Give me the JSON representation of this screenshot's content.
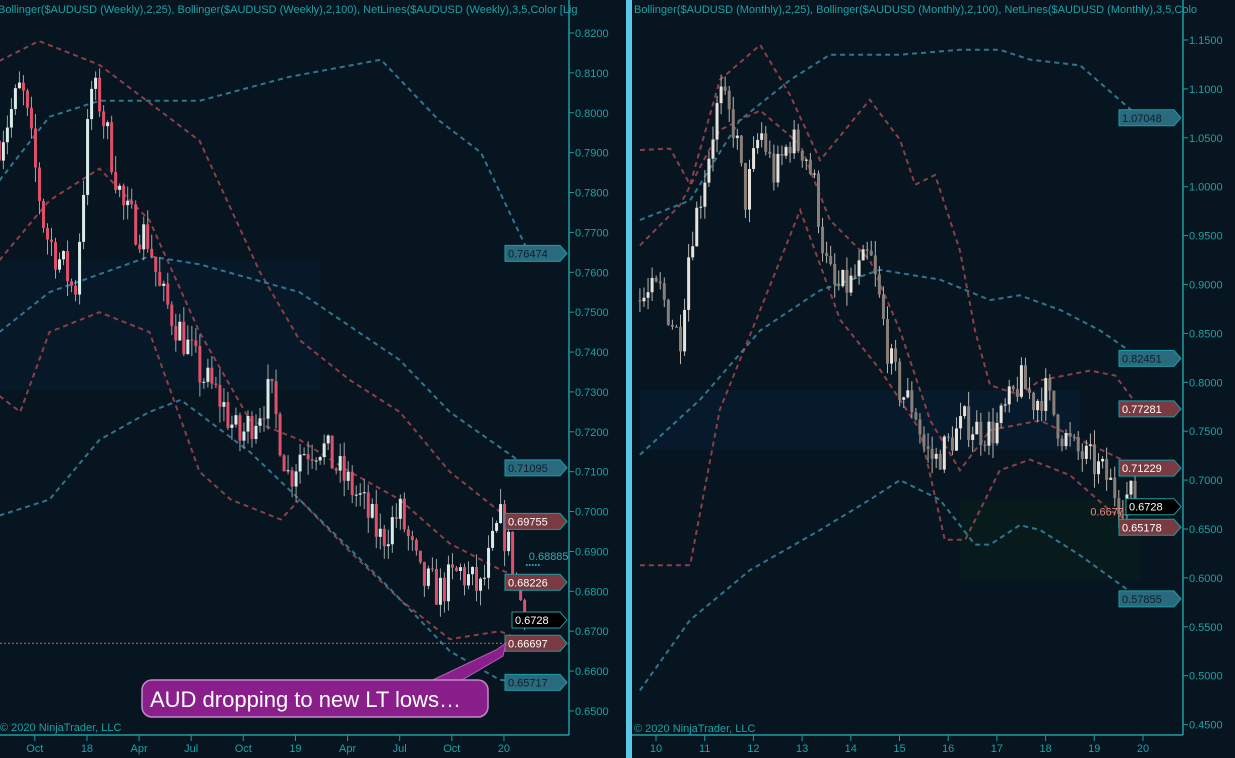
{
  "colors": {
    "background": "#061520",
    "axis": "#1a9ea3",
    "divider": "#5cc8e8",
    "up_candle": "#d8ecea",
    "down_candle": "#e0506a",
    "band_25": "#a3464f",
    "band_100": "#3a86a3",
    "callout": "#8a1f8c"
  },
  "chart_data": [
    {
      "type": "candlestick",
      "period": "weekly",
      "header": "Bollinger($AUDUSD (Weekly),2,25), Bollinger($AUDUSD (Weekly),2,100), NetLines($AUDUSD (Weekly),3,5,Color [Lig",
      "copyright": "© 2020 NinjaTrader, LLC",
      "ylim": [
        0.645,
        0.825
      ],
      "yticks": [
        "0.8200",
        "0.8100",
        "0.8000",
        "0.7900",
        "0.7800",
        "0.7700",
        "0.7600",
        "0.7500",
        "0.7400",
        "0.7300",
        "0.7200",
        "0.7100",
        "0.7000",
        "0.6900",
        "0.6800",
        "0.6700",
        "0.6600",
        "0.6500"
      ],
      "xticks": [
        {
          "label": "Oct",
          "t": 2017.75
        },
        {
          "label": "18",
          "t": 2018.0
        },
        {
          "label": "Apr",
          "t": 2018.25
        },
        {
          "label": "Jul",
          "t": 2018.5
        },
        {
          "label": "Oct",
          "t": 2018.75
        },
        {
          "label": "19",
          "t": 2019.0
        },
        {
          "label": "Apr",
          "t": 2019.25
        },
        {
          "label": "Jul",
          "t": 2019.5
        },
        {
          "label": "Oct",
          "t": 2019.75
        },
        {
          "label": "20",
          "t": 2020.0
        }
      ],
      "closes": [
        [
          2017.58,
          0.793
        ],
        [
          2017.68,
          0.806
        ],
        [
          2017.7,
          0.803
        ],
        [
          2017.8,
          0.77
        ],
        [
          2017.92,
          0.758
        ],
        [
          2017.94,
          0.753
        ],
        [
          2018.02,
          0.806
        ],
        [
          2018.06,
          0.803
        ],
        [
          2018.18,
          0.775
        ],
        [
          2018.3,
          0.768
        ],
        [
          2018.35,
          0.755
        ],
        [
          2018.45,
          0.745
        ],
        [
          2018.54,
          0.735
        ],
        [
          2018.64,
          0.728
        ],
        [
          2018.73,
          0.718
        ],
        [
          2018.88,
          0.73
        ],
        [
          2018.97,
          0.708
        ],
        [
          2019.02,
          0.715
        ],
        [
          2019.12,
          0.717
        ],
        [
          2019.21,
          0.71
        ],
        [
          2019.31,
          0.703
        ],
        [
          2019.41,
          0.693
        ],
        [
          2019.5,
          0.7
        ],
        [
          2019.6,
          0.683
        ],
        [
          2019.69,
          0.68
        ],
        [
          2019.79,
          0.685
        ],
        [
          2019.89,
          0.68
        ],
        [
          2019.98,
          0.698
        ],
        [
          2020.03,
          0.69
        ],
        [
          2020.08,
          0.678
        ],
        [
          2020.11,
          0.6728
        ]
      ],
      "bands": {
        "upper_25": [
          [
            2017.58,
            0.813
          ],
          [
            2017.77,
            0.818
          ],
          [
            2018.06,
            0.812
          ],
          [
            2018.54,
            0.793
          ],
          [
            2018.83,
            0.76
          ],
          [
            2019.02,
            0.743
          ],
          [
            2019.26,
            0.733
          ],
          [
            2019.5,
            0.725
          ],
          [
            2019.74,
            0.71
          ],
          [
            2019.98,
            0.7
          ],
          [
            2020.12,
            0.69755
          ]
        ],
        "mid_25": [
          [
            2017.58,
            0.763
          ],
          [
            2017.82,
            0.778
          ],
          [
            2018.06,
            0.786
          ],
          [
            2018.3,
            0.773
          ],
          [
            2018.54,
            0.745
          ],
          [
            2018.78,
            0.723
          ],
          [
            2019.02,
            0.718
          ],
          [
            2019.26,
            0.71
          ],
          [
            2019.5,
            0.703
          ],
          [
            2019.74,
            0.692
          ],
          [
            2019.98,
            0.6855
          ],
          [
            2020.12,
            0.68226
          ]
        ],
        "lower_25": [
          [
            2017.58,
            0.729
          ],
          [
            2017.68,
            0.725
          ],
          [
            2017.82,
            0.745
          ],
          [
            2018.06,
            0.75
          ],
          [
            2018.3,
            0.745
          ],
          [
            2018.54,
            0.71
          ],
          [
            2018.69,
            0.703
          ],
          [
            2018.93,
            0.698
          ],
          [
            2019.02,
            0.703
          ],
          [
            2019.26,
            0.69
          ],
          [
            2019.5,
            0.678
          ],
          [
            2019.74,
            0.668
          ],
          [
            2019.98,
            0.67
          ],
          [
            2020.12,
            0.66697
          ]
        ],
        "upper_100": [
          [
            2017.58,
            0.783
          ],
          [
            2017.82,
            0.799
          ],
          [
            2018.06,
            0.803
          ],
          [
            2018.54,
            0.803
          ],
          [
            2018.97,
            0.809
          ],
          [
            2019.41,
            0.8133
          ],
          [
            2019.69,
            0.798
          ],
          [
            2019.89,
            0.79
          ],
          [
            2020.12,
            0.76474
          ]
        ],
        "mid_100": [
          [
            2017.58,
            0.745
          ],
          [
            2017.82,
            0.755
          ],
          [
            2018.3,
            0.764
          ],
          [
            2018.54,
            0.762
          ],
          [
            2019.02,
            0.755
          ],
          [
            2019.5,
            0.738
          ],
          [
            2019.74,
            0.725
          ],
          [
            2020.12,
            0.71095
          ]
        ],
        "lower_100": [
          [
            2017.58,
            0.699
          ],
          [
            2017.82,
            0.703
          ],
          [
            2018.06,
            0.718
          ],
          [
            2018.3,
            0.725
          ],
          [
            2018.45,
            0.728
          ],
          [
            2018.78,
            0.715
          ],
          [
            2019.02,
            0.703
          ],
          [
            2019.41,
            0.683
          ],
          [
            2019.74,
            0.665
          ],
          [
            2019.98,
            0.6578
          ],
          [
            2020.12,
            0.65717
          ]
        ]
      },
      "price_labels": [
        {
          "text": "0.76474",
          "kind": "blue"
        },
        {
          "text": "0.71095",
          "kind": "blue"
        },
        {
          "text": "0.69755",
          "kind": "red"
        },
        {
          "text": "0.68226",
          "kind": "red"
        },
        {
          "text": "0.6728",
          "kind": "last"
        },
        {
          "text": "0.66697",
          "kind": "red"
        },
        {
          "text": "0.65717",
          "kind": "blue"
        }
      ],
      "netline": {
        "text": "0.68885",
        "t": 2020.1
      },
      "hline": 0.66697,
      "callout": "AUD dropping to new LT lows…"
    },
    {
      "type": "candlestick",
      "period": "monthly",
      "header": "Bollinger($AUDUSD (Monthly),2,25), Bollinger($AUDUSD (Monthly),2,100), NetLines($AUDUSD (Monthly),3,5,Colo",
      "copyright": "© 2020 NinjaTrader, LLC",
      "ylim": [
        0.44,
        1.16
      ],
      "yticks": [
        "1.1500",
        "1.1000",
        "1.0500",
        "1.0000",
        "0.9500",
        "0.9000",
        "0.8500",
        "0.8000",
        "0.7500",
        "0.7000",
        "0.6500",
        "0.6000",
        "0.5500",
        "0.5000",
        "0.4500"
      ],
      "xticks": [
        {
          "label": "10",
          "t": 2010
        },
        {
          "label": "11",
          "t": 2011
        },
        {
          "label": "12",
          "t": 2012
        },
        {
          "label": "13",
          "t": 2013
        },
        {
          "label": "14",
          "t": 2014
        },
        {
          "label": "15",
          "t": 2015
        },
        {
          "label": "16",
          "t": 2016
        },
        {
          "label": "17",
          "t": 2017
        },
        {
          "label": "18",
          "t": 2018
        },
        {
          "label": "19",
          "t": 2019
        },
        {
          "label": "20",
          "t": 2020
        }
      ],
      "closes": [
        [
          2009.67,
          0.884
        ],
        [
          2010.08,
          0.894
        ],
        [
          2010.49,
          0.843
        ],
        [
          2010.7,
          0.946
        ],
        [
          2010.9,
          0.986
        ],
        [
          2011.31,
          1.094
        ],
        [
          2011.62,
          1.058
        ],
        [
          2011.83,
          0.986
        ],
        [
          2012.14,
          1.058
        ],
        [
          2012.44,
          1.01
        ],
        [
          2012.75,
          1.048
        ],
        [
          2013.06,
          1.037
        ],
        [
          2013.26,
          1.0
        ],
        [
          2013.47,
          0.925
        ],
        [
          2013.68,
          0.894
        ],
        [
          2013.99,
          0.9
        ],
        [
          2014.39,
          0.93
        ],
        [
          2014.6,
          0.88
        ],
        [
          2014.8,
          0.823
        ],
        [
          2015.01,
          0.792
        ],
        [
          2015.32,
          0.772
        ],
        [
          2015.52,
          0.731
        ],
        [
          2015.73,
          0.72
        ],
        [
          2016.04,
          0.74
        ],
        [
          2016.35,
          0.76
        ],
        [
          2016.65,
          0.75
        ],
        [
          2016.96,
          0.75
        ],
        [
          2017.27,
          0.78
        ],
        [
          2017.47,
          0.802
        ],
        [
          2017.78,
          0.78
        ],
        [
          2017.99,
          0.792
        ],
        [
          2018.3,
          0.751
        ],
        [
          2018.6,
          0.73
        ],
        [
          2018.91,
          0.72
        ],
        [
          2019.22,
          0.705
        ],
        [
          2019.53,
          0.68
        ],
        [
          2019.73,
          0.685
        ],
        [
          2020.08,
          0.6728
        ]
      ],
      "bands": {
        "upper_25": [
          [
            2009.67,
            1.0375
          ],
          [
            2010.29,
            1.039
          ],
          [
            2010.7,
            1.002
          ],
          [
            2011.31,
            1.109
          ],
          [
            2012.14,
            1.145
          ],
          [
            2012.75,
            1.094
          ],
          [
            2013.37,
            1.027
          ],
          [
            2014.39,
            1.089
          ],
          [
            2015.01,
            1.048
          ],
          [
            2015.32,
            1.002
          ],
          [
            2015.73,
            1.012
          ],
          [
            2016.24,
            0.935
          ],
          [
            2016.55,
            0.853
          ],
          [
            2016.86,
            0.797
          ],
          [
            2017.47,
            0.787
          ],
          [
            2017.89,
            0.802
          ],
          [
            2018.91,
            0.812
          ],
          [
            2019.43,
            0.807
          ],
          [
            2019.94,
            0.77281
          ]
        ],
        "mid_25": [
          [
            2009.67,
            0.94
          ],
          [
            2010.49,
            0.981
          ],
          [
            2011.31,
            1.058
          ],
          [
            2012.14,
            1.078
          ],
          [
            2012.96,
            1.043
          ],
          [
            2013.57,
            0.966
          ],
          [
            2014.39,
            0.925
          ],
          [
            2015.01,
            0.853
          ],
          [
            2015.63,
            0.761
          ],
          [
            2016.24,
            0.71
          ],
          [
            2016.86,
            0.751
          ],
          [
            2017.89,
            0.761
          ],
          [
            2018.71,
            0.741
          ],
          [
            2019.94,
            0.71229
          ]
        ],
        "lower_25": [
          [
            2009.67,
            0.613
          ],
          [
            2010.7,
            0.613
          ],
          [
            2011.31,
            0.772
          ],
          [
            2012.14,
            0.874
          ],
          [
            2012.96,
            0.976
          ],
          [
            2013.78,
            0.864
          ],
          [
            2014.6,
            0.813
          ],
          [
            2015.42,
            0.751
          ],
          [
            2015.93,
            0.639
          ],
          [
            2016.35,
            0.639
          ],
          [
            2017.06,
            0.71
          ],
          [
            2017.68,
            0.721
          ],
          [
            2018.5,
            0.705
          ],
          [
            2019.32,
            0.669
          ],
          [
            2019.94,
            0.65178
          ]
        ],
        "upper_100": [
          [
            2009.67,
            0.966
          ],
          [
            2010.7,
            0.986
          ],
          [
            2011.72,
            1.068
          ],
          [
            2012.75,
            1.109
          ],
          [
            2013.57,
            1.135
          ],
          [
            2015.01,
            1.135
          ],
          [
            2016.24,
            1.14
          ],
          [
            2017.06,
            1.14
          ],
          [
            2017.68,
            1.13
          ],
          [
            2018.71,
            1.124
          ],
          [
            2019.94,
            1.07048
          ]
        ],
        "mid_100": [
          [
            2009.67,
            0.726
          ],
          [
            2010.9,
            0.782
          ],
          [
            2012.14,
            0.853
          ],
          [
            2013.37,
            0.894
          ],
          [
            2014.6,
            0.915
          ],
          [
            2015.83,
            0.905
          ],
          [
            2016.86,
            0.884
          ],
          [
            2017.47,
            0.889
          ],
          [
            2018.3,
            0.874
          ],
          [
            2019.12,
            0.853
          ],
          [
            2019.94,
            0.82451
          ]
        ],
        "lower_100": [
          [
            2009.67,
            0.485
          ],
          [
            2010.7,
            0.557
          ],
          [
            2011.93,
            0.608
          ],
          [
            2013.37,
            0.649
          ],
          [
            2014.39,
            0.68
          ],
          [
            2015.01,
            0.7
          ],
          [
            2015.83,
            0.68
          ],
          [
            2016.55,
            0.634
          ],
          [
            2016.86,
            0.634
          ],
          [
            2017.47,
            0.654
          ],
          [
            2017.89,
            0.649
          ],
          [
            2018.71,
            0.623
          ],
          [
            2019.94,
            0.57855
          ]
        ]
      },
      "price_labels": [
        {
          "text": "1.07048",
          "kind": "blue"
        },
        {
          "text": "0.82451",
          "kind": "blue"
        },
        {
          "text": "0.77281",
          "kind": "red"
        },
        {
          "text": "0.71229",
          "kind": "red"
        },
        {
          "text": "0.6728",
          "kind": "last"
        },
        {
          "text": "0.65178",
          "kind": "red"
        },
        {
          "text": "0.57855",
          "kind": "blue"
        }
      ],
      "netline": {
        "text": "0.66771",
        "t": 2019.9
      }
    }
  ]
}
